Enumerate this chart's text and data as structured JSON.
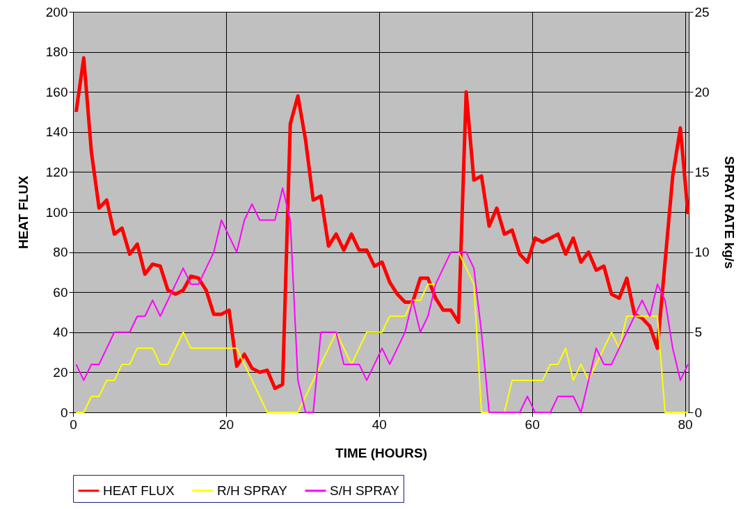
{
  "chart_data": {
    "type": "line",
    "xlabel": "TIME (HOURS)",
    "ylabel": "HEAT FLUX",
    "y2label": "SPRAY RATE kg/s",
    "x": [
      0.4,
      1.4,
      2.4,
      3.4,
      4.4,
      5.4,
      6.4,
      7.4,
      8.4,
      9.4,
      10.4,
      11.4,
      12.4,
      13.4,
      14.4,
      15.4,
      16.4,
      17.4,
      18.4,
      19.4,
      20.4,
      21.4,
      22.4,
      23.4,
      24.4,
      25.4,
      26.4,
      27.4,
      28.4,
      29.4,
      30.4,
      31.4,
      32.4,
      33.4,
      34.4,
      35.4,
      36.4,
      37.4,
      38.4,
      39.4,
      40.4,
      41.4,
      42.4,
      43.4,
      44.4,
      45.4,
      46.4,
      47.4,
      48.4,
      49.4,
      50.4,
      51.4,
      52.4,
      53.4,
      54.4,
      55.4,
      56.4,
      57.4,
      58.4,
      59.4,
      60.4,
      61.4,
      62.4,
      63.4,
      64.4,
      65.4,
      66.4,
      67.4,
      68.4,
      69.4,
      70.4,
      71.4,
      72.4,
      73.4,
      74.4,
      75.4,
      76.4,
      77.4,
      78.4,
      79.4,
      80.4
    ],
    "series": [
      {
        "name": "HEAT FLUX",
        "color": "#ff0000",
        "values": [
          150,
          177,
          130,
          102,
          106,
          89,
          92,
          79,
          84,
          69,
          74,
          73,
          61,
          59,
          61,
          68,
          67,
          61,
          49,
          49,
          51,
          23,
          29,
          22,
          20,
          21,
          12,
          14,
          144,
          158,
          136,
          106,
          108,
          83,
          89,
          81,
          89,
          81,
          81,
          73,
          75,
          65,
          59,
          55,
          55,
          67,
          67,
          57,
          51,
          51,
          45,
          160,
          116,
          118,
          93,
          102,
          89,
          91,
          79,
          75,
          87,
          85,
          87,
          89,
          79,
          87,
          75,
          80,
          71,
          73,
          59,
          57,
          67,
          49,
          47,
          43,
          32,
          75,
          118,
          142,
          99
        ]
      },
      {
        "name": "R/H SPRAY",
        "color": "#ffff00",
        "axis": "y2",
        "values": [
          0,
          0,
          1,
          1,
          2,
          2,
          3,
          3,
          4,
          4,
          4,
          3,
          3,
          4,
          5,
          4,
          4,
          4,
          4,
          4,
          4,
          4,
          3,
          2,
          1,
          0,
          0,
          0,
          0,
          0,
          1,
          2,
          3,
          4,
          5,
          4,
          3,
          4,
          5,
          5,
          5,
          6,
          6,
          6,
          7,
          7,
          8,
          8,
          null,
          null,
          10,
          9,
          8,
          0,
          0,
          0,
          0,
          2,
          2,
          2,
          2,
          2,
          3,
          3,
          4,
          2,
          3,
          2,
          3,
          4,
          5,
          4,
          6,
          6,
          6,
          6,
          6,
          0,
          0,
          0,
          0
        ]
      },
      {
        "name": "S/H SPRAY",
        "color": "#ff00ff",
        "axis": "y2",
        "values": [
          3,
          2,
          3,
          3,
          4,
          5,
          5,
          5,
          6,
          6,
          7,
          6,
          7,
          8,
          9,
          8,
          8,
          9,
          10,
          12,
          11,
          10,
          12,
          13,
          12,
          12,
          12,
          14,
          12,
          2,
          0,
          0,
          5,
          5,
          5,
          3,
          3,
          3,
          2,
          3,
          4,
          3,
          4,
          5,
          7,
          5,
          6,
          8,
          9,
          10,
          10,
          10,
          9,
          5,
          0,
          0,
          0,
          0,
          0,
          1,
          0,
          0,
          0,
          1,
          1,
          1,
          0,
          2,
          4,
          3,
          3,
          4,
          5,
          6,
          7,
          6,
          8,
          7,
          4,
          2,
          3
        ]
      }
    ],
    "xlim": [
      0,
      80.5
    ],
    "xticks": [
      0,
      20,
      40,
      60,
      80
    ],
    "ylim": [
      0,
      200
    ],
    "yticks": [
      0,
      20,
      40,
      60,
      80,
      100,
      120,
      140,
      160,
      180,
      200
    ],
    "y2lim": [
      0,
      25
    ],
    "y2ticks": [
      0,
      5,
      10,
      15,
      20,
      25
    ],
    "grid": true,
    "legend": "bottom",
    "marker": "none"
  }
}
